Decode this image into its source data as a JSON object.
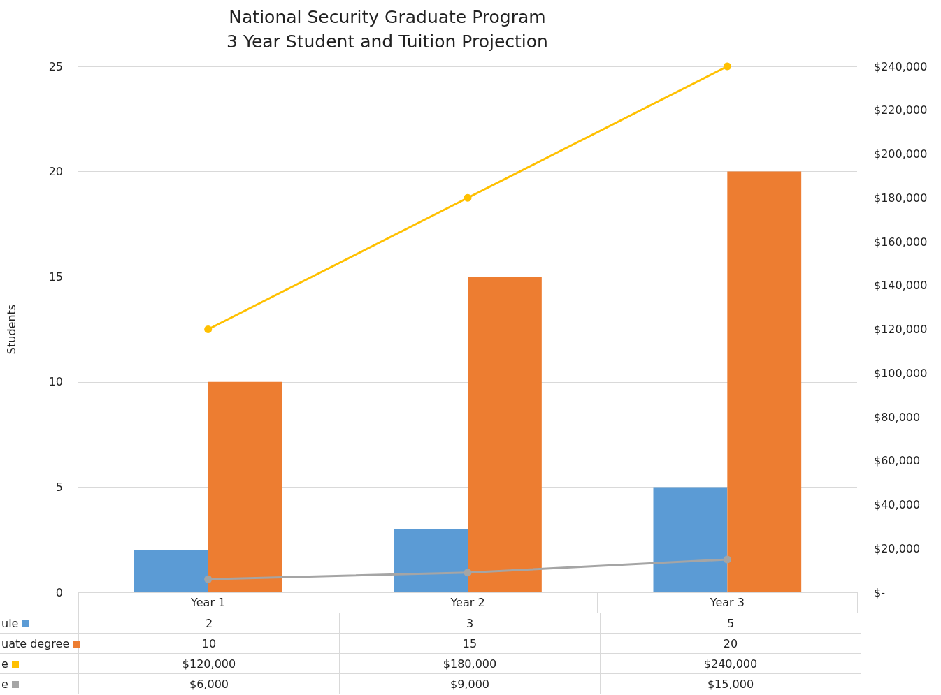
{
  "chart_data": {
    "type": "bar",
    "title": "National Security Graduate Program\n3 Year Student and Tuition Projection",
    "ylabel": "Students",
    "categories": [
      "Year 1",
      "Year 2",
      "Year 3"
    ],
    "series": [
      {
        "name": "ule",
        "color": "#5b9bd5",
        "values": [
          2,
          3,
          5
        ],
        "value_labels": [
          "2",
          "3",
          "5"
        ]
      },
      {
        "name": "uate degree",
        "color": "#ed7d31",
        "values": [
          10,
          15,
          20
        ],
        "value_labels": [
          "10",
          "15",
          "20"
        ]
      },
      {
        "name": "e",
        "type": "line",
        "axis": "y2",
        "color": "#ffc000",
        "values": [
          120000,
          180000,
          240000
        ],
        "value_labels": [
          "$120,000",
          "$180,000",
          "$240,000"
        ]
      },
      {
        "name": "e",
        "type": "line",
        "axis": "y2",
        "color": "#a5a5a5",
        "values": [
          6000,
          9000,
          15000
        ],
        "value_labels": [
          "$6,000",
          "$9,000",
          "$15,000"
        ]
      }
    ],
    "ylim": [
      0,
      25
    ],
    "yticks": [
      0,
      5,
      10,
      15,
      20,
      25
    ],
    "y2lim": [
      0,
      240000
    ],
    "y2ticks": [
      {
        "value": 0,
        "label": "$-"
      },
      {
        "value": 20000,
        "label": "$20,000"
      },
      {
        "value": 40000,
        "label": "$40,000"
      },
      {
        "value": 60000,
        "label": "$60,000"
      },
      {
        "value": 80000,
        "label": "$80,000"
      },
      {
        "value": 100000,
        "label": "$100,000"
      },
      {
        "value": 120000,
        "label": "$120,000"
      },
      {
        "value": 140000,
        "label": "$140,000"
      },
      {
        "value": 160000,
        "label": "$160,000"
      },
      {
        "value": 180000,
        "label": "$180,000"
      },
      {
        "value": 200000,
        "label": "$200,000"
      },
      {
        "value": 220000,
        "label": "$220,000"
      },
      {
        "value": 240000,
        "label": "$240,000"
      }
    ],
    "grid": "y",
    "marker": "circle",
    "legend": "bottom left"
  }
}
